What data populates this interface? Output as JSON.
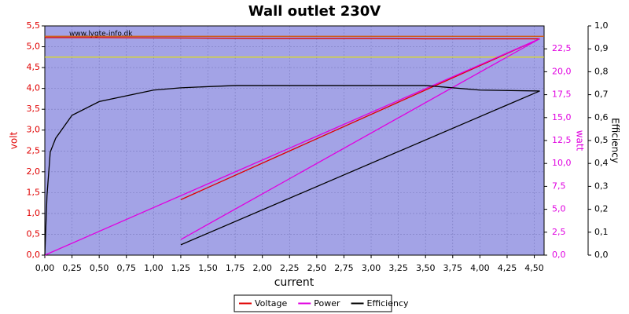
{
  "chart_data": {
    "type": "line",
    "title": "Wall outlet 230V",
    "watermark": "www.lygte-info.dk",
    "xlabel": "current",
    "ylabel": "volt",
    "y2label": "watt",
    "y3label": "Efficiency",
    "xlim": [
      0,
      4.59
    ],
    "ylim": [
      0,
      5.5
    ],
    "y2lim": [
      0,
      25
    ],
    "y3lim": [
      0,
      1
    ],
    "xticks": [
      {
        "value": 0,
        "label": "0,00"
      },
      {
        "value": 0.25,
        "label": "0,25"
      },
      {
        "value": 0.5,
        "label": "0,50"
      },
      {
        "value": 0.75,
        "label": "0,75"
      },
      {
        "value": 1,
        "label": "1,00"
      },
      {
        "value": 1.25,
        "label": "1,25"
      },
      {
        "value": 1.5,
        "label": "1,50"
      },
      {
        "value": 1.75,
        "label": "1,75"
      },
      {
        "value": 2,
        "label": "2,00"
      },
      {
        "value": 2.25,
        "label": "2,25"
      },
      {
        "value": 2.5,
        "label": "2,50"
      },
      {
        "value": 2.75,
        "label": "2,75"
      },
      {
        "value": 3,
        "label": "3,00"
      },
      {
        "value": 3.25,
        "label": "3,25"
      },
      {
        "value": 3.5,
        "label": "3,50"
      },
      {
        "value": 3.75,
        "label": "3,75"
      },
      {
        "value": 4,
        "label": "4,00"
      },
      {
        "value": 4.25,
        "label": "4,25"
      },
      {
        "value": 4.5,
        "label": "4,50"
      }
    ],
    "yticks": [
      {
        "value": 0,
        "label": "0,0"
      },
      {
        "value": 0.5,
        "label": "0,5"
      },
      {
        "value": 1,
        "label": "1,0"
      },
      {
        "value": 1.5,
        "label": "1,5"
      },
      {
        "value": 2,
        "label": "2,0"
      },
      {
        "value": 2.5,
        "label": "2,5"
      },
      {
        "value": 3,
        "label": "3,0"
      },
      {
        "value": 3.5,
        "label": "3,5"
      },
      {
        "value": 4,
        "label": "4,0"
      },
      {
        "value": 4.5,
        "label": "4,5"
      },
      {
        "value": 5,
        "label": "5,0"
      },
      {
        "value": 5.5,
        "label": "5,5"
      }
    ],
    "y2ticks": [
      {
        "value": 0,
        "label": "0,0"
      },
      {
        "value": 2.5,
        "label": "2,5"
      },
      {
        "value": 5,
        "label": "5,0"
      },
      {
        "value": 7.5,
        "label": "7,5"
      },
      {
        "value": 10,
        "label": "10,0"
      },
      {
        "value": 12.5,
        "label": "12,5"
      },
      {
        "value": 15,
        "label": "15,0"
      },
      {
        "value": 17.5,
        "label": "17,5"
      },
      {
        "value": 20,
        "label": "20,0"
      },
      {
        "value": 22.5,
        "label": "22,5"
      }
    ],
    "y3ticks": [
      {
        "value": 0,
        "label": "0,0"
      },
      {
        "value": 0.1,
        "label": "0,1"
      },
      {
        "value": 0.2,
        "label": "0,2"
      },
      {
        "value": 0.3,
        "label": "0,3"
      },
      {
        "value": 0.4,
        "label": "0,4"
      },
      {
        "value": 0.5,
        "label": "0,5"
      },
      {
        "value": 0.6,
        "label": "0,6"
      },
      {
        "value": 0.7,
        "label": "0,7"
      },
      {
        "value": 0.8,
        "label": "0,8"
      },
      {
        "value": 0.9,
        "label": "0,9"
      },
      {
        "value": 1,
        "label": "1,0"
      }
    ],
    "grid": true,
    "reference_lines": [
      {
        "value": 5.25,
        "color": "#d35400"
      },
      {
        "value": 4.75,
        "color": "#e6e600"
      }
    ],
    "series": [
      {
        "name": "Voltage",
        "color": "#e00000",
        "axis": "y",
        "x": [
          1.25,
          4.55,
          4.0,
          3.5,
          3.0,
          2.0,
          1.25,
          0.5,
          0
        ],
        "values": [
          1.33,
          5.19,
          5.19,
          5.19,
          5.2,
          5.2,
          5.21,
          5.22,
          5.22
        ]
      },
      {
        "name": "Power",
        "color": "#e000e0",
        "axis": "y2",
        "x": [
          1.25,
          4.55,
          0
        ],
        "values": [
          1.7,
          23.6,
          0
        ]
      },
      {
        "name": "Efficiency",
        "color": "#000000",
        "axis": "y3",
        "x": [
          1.25,
          4.55,
          4.0,
          3.5,
          2.5,
          1.75,
          1.25,
          1.0,
          0.5,
          0.25,
          0.1,
          0.05,
          0.02,
          0
        ],
        "values": [
          0.045,
          0.716,
          0.72,
          0.74,
          0.74,
          0.74,
          0.73,
          0.72,
          0.67,
          0.61,
          0.51,
          0.45,
          0.26,
          0
        ]
      }
    ]
  }
}
